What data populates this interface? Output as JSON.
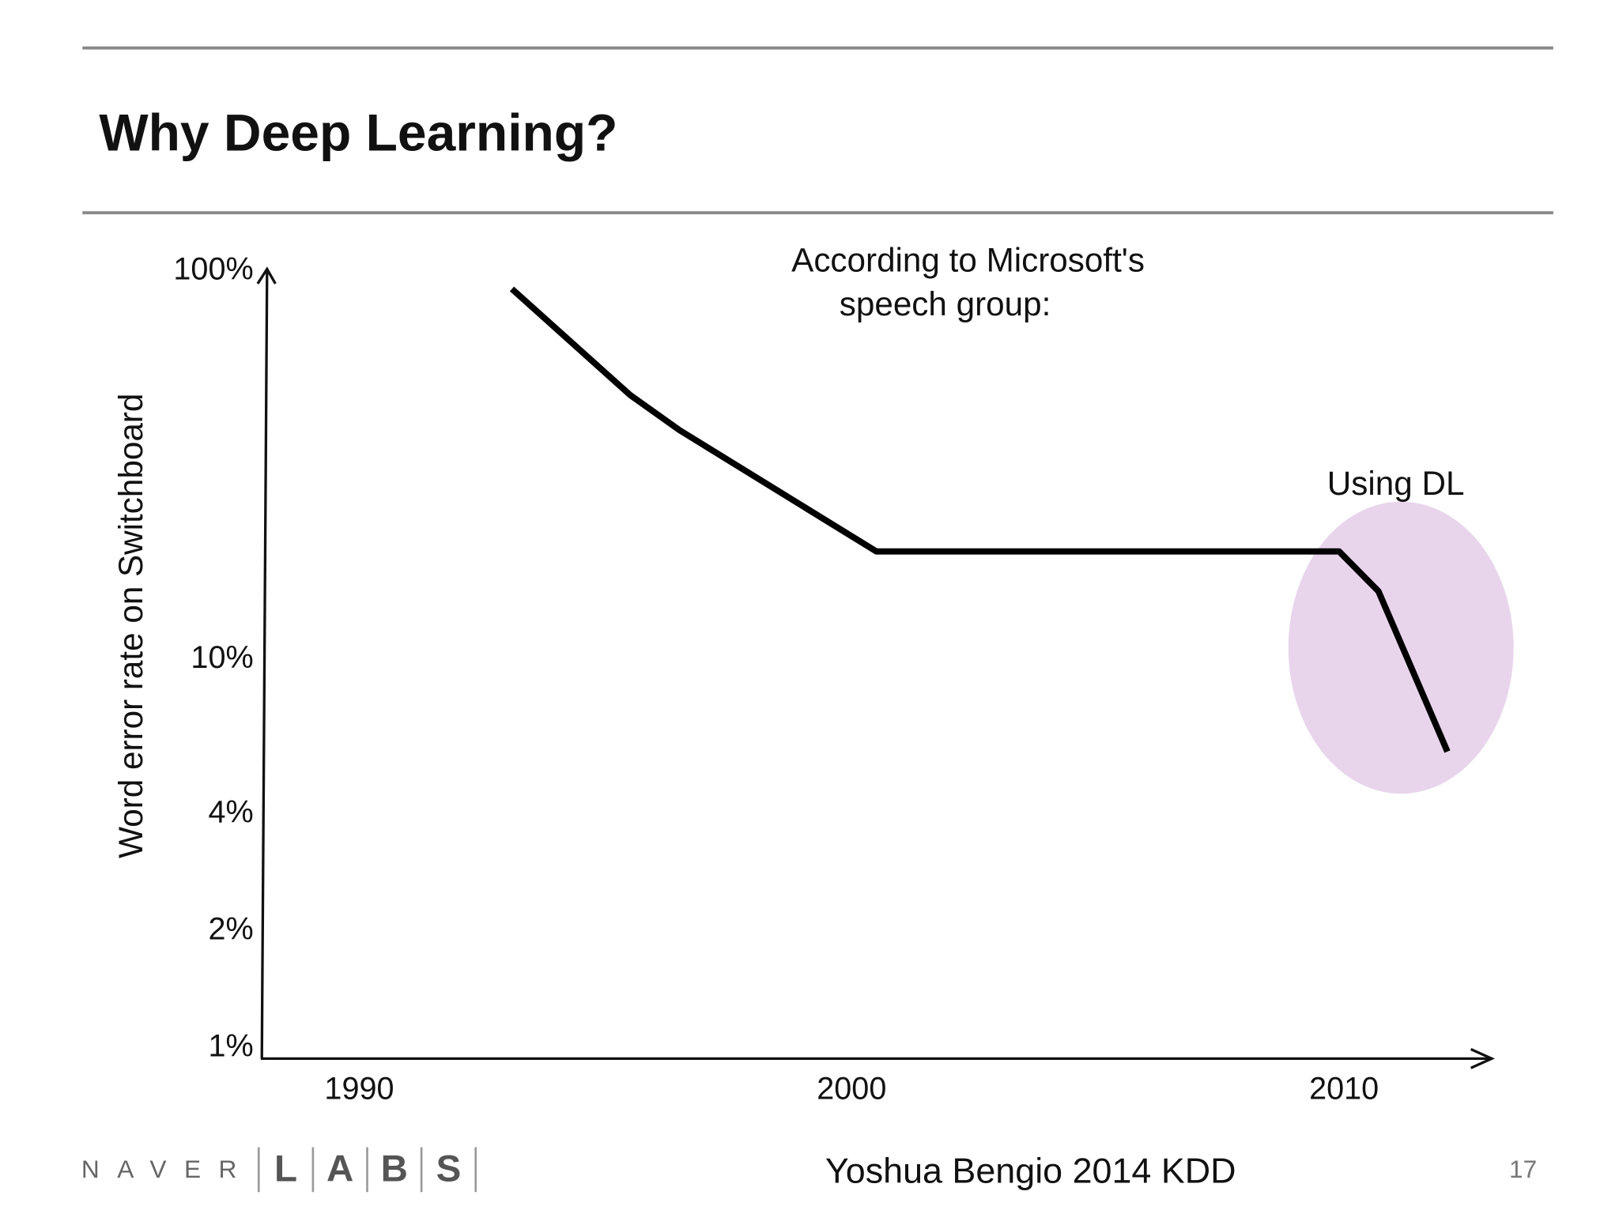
{
  "header": {
    "title": "Why Deep Learning?"
  },
  "chart_data": {
    "type": "line",
    "ylabel": "Word error rate on Switchboard",
    "annotations": [
      "According to Microsoft's",
      "speech group:",
      "Using DL"
    ],
    "x": [
      1993.1,
      1995.5,
      1996.5,
      2000.5,
      2009.9,
      2010.7,
      2012.1
    ],
    "series": [
      {
        "name": "Word error rate",
        "color": "#000000",
        "values": [
          90,
          48,
          39,
          19,
          19,
          15,
          5.8
        ]
      }
    ],
    "xlim": [
      1988,
      2013
    ],
    "xticks": [
      1990,
      2000,
      2010
    ],
    "ylim": [
      1,
      100
    ],
    "log_y": true,
    "yticks": [
      {
        "value": 1,
        "label": "1%"
      },
      {
        "value": 2,
        "label": "2%"
      },
      {
        "value": 4,
        "label": "4%"
      },
      {
        "value": 10,
        "label": "10%"
      },
      {
        "value": 100,
        "label": "100%"
      }
    ],
    "grid": false
  },
  "footer": {
    "brand": "NAVER",
    "labs": [
      "L",
      "A",
      "B",
      "S"
    ],
    "credit": "Yoshua Bengio 2014 KDD",
    "page": 17
  }
}
